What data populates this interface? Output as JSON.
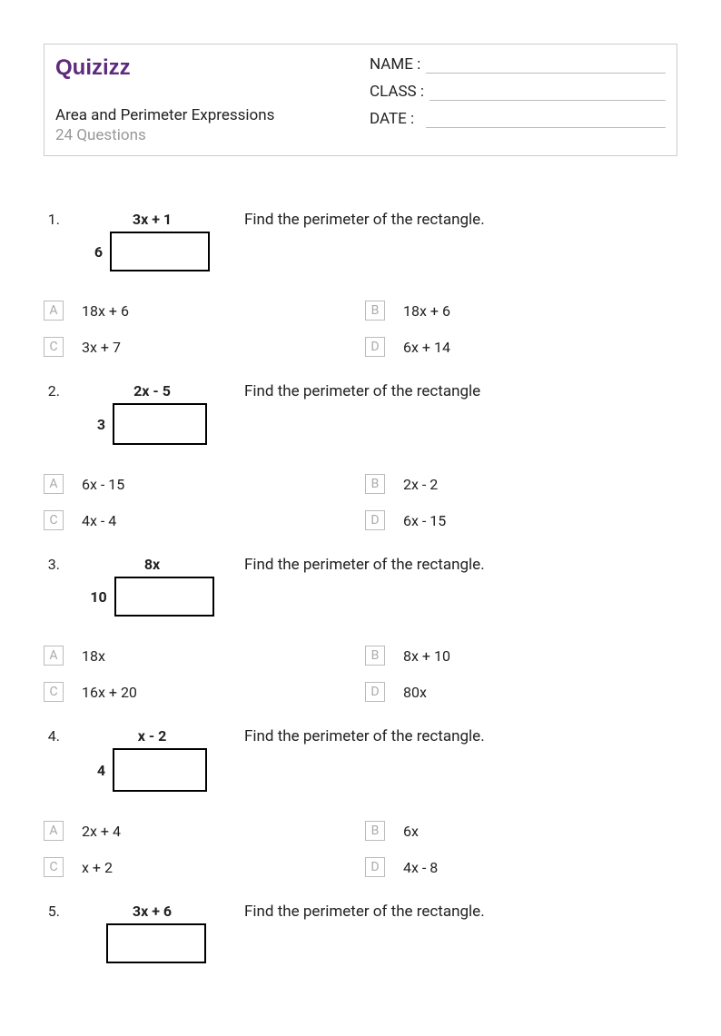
{
  "header": {
    "logo_text": "Quizizz",
    "title": "Area and Perimeter Expressions",
    "subtitle": "24 Questions",
    "fields": [
      {
        "label": "NAME :"
      },
      {
        "label": "CLASS :"
      },
      {
        "label": "DATE   :"
      }
    ]
  },
  "questions": [
    {
      "num": "1.",
      "diagram": {
        "top": "3x + 1",
        "side": "6",
        "rect_w": 110,
        "rect_h": 44
      },
      "text": "Find the perimeter of the rectangle.",
      "answers": [
        {
          "letter": "A",
          "text": "18x + 6"
        },
        {
          "letter": "B",
          "text": "18x + 6"
        },
        {
          "letter": "C",
          "text": "3x + 7"
        },
        {
          "letter": "D",
          "text": "6x + 14"
        }
      ]
    },
    {
      "num": "2.",
      "diagram": {
        "top": "2x - 5",
        "side": "3",
        "rect_w": 104,
        "rect_h": 46
      },
      "text": "Find the perimeter of the rectangle",
      "answers": [
        {
          "letter": "A",
          "text": "6x - 15"
        },
        {
          "letter": "B",
          "text": "2x - 2"
        },
        {
          "letter": "C",
          "text": "4x - 4"
        },
        {
          "letter": "D",
          "text": "6x - 15"
        }
      ]
    },
    {
      "num": "3.",
      "diagram": {
        "top": "8x",
        "side": "10",
        "rect_w": 110,
        "rect_h": 44
      },
      "text": "Find the perimeter of the rectangle.",
      "answers": [
        {
          "letter": "A",
          "text": "18x"
        },
        {
          "letter": "B",
          "text": "8x + 10"
        },
        {
          "letter": "C",
          "text": "16x + 20"
        },
        {
          "letter": "D",
          "text": "80x"
        }
      ]
    },
    {
      "num": "4.",
      "diagram": {
        "top": "x - 2",
        "side": "4",
        "rect_w": 104,
        "rect_h": 48
      },
      "text": "Find the perimeter of the rectangle.",
      "answers": [
        {
          "letter": "A",
          "text": "2x + 4"
        },
        {
          "letter": "B",
          "text": "6x"
        },
        {
          "letter": "C",
          "text": "x + 2"
        },
        {
          "letter": "D",
          "text": "4x - 8"
        }
      ]
    },
    {
      "num": "5.",
      "diagram": {
        "top": "3x + 6",
        "side": "",
        "rect_w": 110,
        "rect_h": 44
      },
      "text": "Find the perimeter of the rectangle.",
      "answers": []
    }
  ],
  "style": {
    "letter_border": "#bbb",
    "letter_color": "#aaa",
    "text_color": "#222",
    "muted_color": "#999",
    "logo_color": "#5d2a7c"
  }
}
